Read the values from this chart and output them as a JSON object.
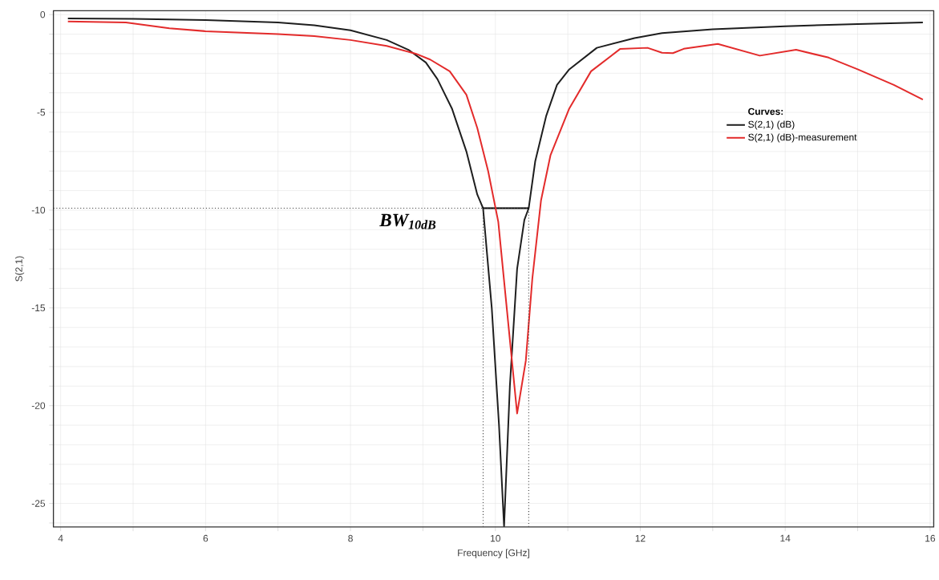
{
  "chart_data": {
    "type": "line",
    "xlabel": "Frequency [GHz]",
    "ylabel": "S(2,1)",
    "legend_title": "Curves:",
    "legend": "right",
    "grid": true,
    "line_style": "solid",
    "marker": "none",
    "xlim": [
      3.9,
      16.05
    ],
    "ylim": [
      -26.2,
      0.2
    ],
    "xticks": [
      4,
      {
        "value": 5,
        "label": null
      },
      6,
      {
        "value": 7,
        "label": null
      },
      8,
      {
        "value": 9,
        "label": null
      },
      10,
      {
        "value": 11,
        "label": null
      },
      12,
      {
        "value": 13,
        "label": null
      },
      14,
      {
        "value": 15,
        "label": null
      },
      16
    ],
    "yticks": [
      0,
      {
        "value": -1,
        "label": null
      },
      {
        "value": -2,
        "label": null
      },
      {
        "value": -3,
        "label": null
      },
      {
        "value": -4,
        "label": null
      },
      -5,
      {
        "value": -6,
        "label": null
      },
      {
        "value": -7,
        "label": null
      },
      {
        "value": -8,
        "label": null
      },
      {
        "value": -9,
        "label": null
      },
      -10,
      {
        "value": -11,
        "label": null
      },
      {
        "value": -12,
        "label": null
      },
      {
        "value": -13,
        "label": null
      },
      {
        "value": -14,
        "label": null
      },
      -15,
      {
        "value": -16,
        "label": null
      },
      {
        "value": -17,
        "label": null
      },
      {
        "value": -18,
        "label": null
      },
      {
        "value": -19,
        "label": null
      },
      -20,
      {
        "value": -21,
        "label": null
      },
      {
        "value": -22,
        "label": null
      },
      {
        "value": -23,
        "label": null
      },
      {
        "value": -24,
        "label": null
      },
      -25,
      {
        "value": -26,
        "label": null
      }
    ],
    "series": [
      {
        "name": "S(2,1) (dB)",
        "color": "#1e1e1e",
        "x": [
          4.1,
          5,
          6,
          7,
          7.5,
          8,
          8.5,
          8.8,
          9.04,
          9.2,
          9.4,
          9.6,
          9.75,
          9.83,
          9.95,
          10.05,
          10.12,
          10.2,
          10.3,
          10.4,
          10.46,
          10.55,
          10.7,
          10.85,
          11.02,
          11.4,
          11.92,
          12.3,
          13,
          14,
          15,
          15.9
        ],
        "values": [
          -0.2,
          -0.22,
          -0.28,
          -0.4,
          -0.55,
          -0.8,
          -1.3,
          -1.8,
          -2.45,
          -3.3,
          -4.8,
          -7.0,
          -9.2,
          -9.9,
          -15,
          -21,
          -26.2,
          -19,
          -13,
          -10.5,
          -9.9,
          -7.5,
          -5.2,
          -3.6,
          -2.8,
          -1.7,
          -1.2,
          -0.95,
          -0.75,
          -0.6,
          -0.48,
          -0.4
        ]
      },
      {
        "type": "line",
        "color": "#000000",
        "x": [
          9.83,
          10.46
        ],
        "values": [
          -9.9,
          -9.9
        ]
      },
      {
        "name": "S(2,1) (dB)-measurement",
        "color": "#e32b2b",
        "x": [
          4.1,
          4.9,
          5.5,
          6,
          7,
          7.5,
          8,
          8.5,
          8.9,
          9.1,
          9.37,
          9.6,
          9.75,
          9.9,
          10.04,
          10.3,
          10.42,
          10.51,
          10.63,
          10.76,
          11.02,
          11.32,
          11.72,
          12.1,
          12.3,
          12.45,
          12.6,
          13.07,
          13.65,
          14.15,
          14.6,
          15.0,
          15.5,
          15.9
        ],
        "values": [
          -0.35,
          -0.4,
          -0.7,
          -0.85,
          -1.0,
          -1.1,
          -1.3,
          -1.6,
          -2.0,
          -2.3,
          -2.9,
          -4.1,
          -5.8,
          -8,
          -10.6,
          -20.4,
          -17.7,
          -13.5,
          -9.5,
          -7.2,
          -4.8,
          -2.9,
          -1.76,
          -1.7,
          -1.95,
          -1.97,
          -1.75,
          -1.5,
          -2.1,
          -1.8,
          -2.2,
          -2.8,
          -3.6,
          -4.35
        ]
      }
    ],
    "ref_lines": [
      {
        "axis": "y",
        "value": -9.9,
        "line_style": "dotted",
        "color": "#333333"
      },
      {
        "axis": "x",
        "value": 9.83,
        "line_style": "dotted",
        "color": "#333333"
      },
      {
        "axis": "x",
        "value": 10.46,
        "line_style": "dotted",
        "color": "#333333"
      }
    ],
    "annotations": [
      {
        "text": "BW$_{10dB}$",
        "x": 9.83,
        "y": -9.9
      }
    ]
  }
}
